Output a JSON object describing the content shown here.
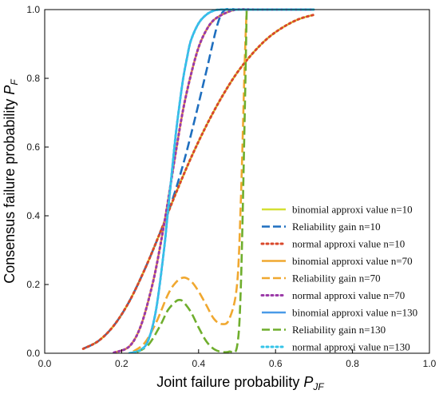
{
  "chart_data": {
    "type": "line",
    "xlabel_main": "Joint failure probability ",
    "xlabel_var": "P",
    "xlabel_sub": "JF",
    "ylabel_main": "Consensus failure probability ",
    "ylabel_var": "P",
    "ylabel_sub": "F",
    "xlim": [
      0.0,
      1.0
    ],
    "ylim": [
      0.0,
      1.0
    ],
    "xticks": [
      "0.0",
      "0.2",
      "0.4",
      "0.6",
      "0.8",
      "1.0"
    ],
    "yticks": [
      "0.0",
      "0.2",
      "0.4",
      "0.6",
      "0.8",
      "1.0"
    ],
    "grid": false,
    "legend_position": "lower-right",
    "series": [
      {
        "name": "binomial approxi value n=10",
        "color": "#d4e034",
        "style": "solid",
        "x": [
          0.1,
          0.14,
          0.18,
          0.22,
          0.26,
          0.3,
          0.34,
          0.38,
          0.42,
          0.46,
          0.5,
          0.54,
          0.58,
          0.62,
          0.66,
          0.7
        ],
        "y": [
          0.013,
          0.036,
          0.081,
          0.151,
          0.244,
          0.351,
          0.463,
          0.568,
          0.662,
          0.745,
          0.816,
          0.872,
          0.917,
          0.949,
          0.972,
          0.985
        ]
      },
      {
        "name": "Reliability gain n=10",
        "color": "#1f6fbf",
        "style": "dashed",
        "x": [
          0.1,
          0.14,
          0.18,
          0.22,
          0.26,
          0.3,
          0.33,
          0.36,
          0.39,
          0.42,
          0.45,
          0.47,
          0.5,
          0.55,
          0.6,
          0.7
        ],
        "y": [
          0.013,
          0.036,
          0.081,
          0.151,
          0.244,
          0.351,
          0.44,
          0.55,
          0.68,
          0.82,
          0.96,
          1.0,
          1.0,
          1.0,
          1.0,
          1.0
        ]
      },
      {
        "name": "normal approxi value n=10",
        "color": "#d9482b",
        "style": "dotted",
        "x": [
          0.1,
          0.14,
          0.18,
          0.22,
          0.26,
          0.3,
          0.34,
          0.38,
          0.42,
          0.46,
          0.5,
          0.54,
          0.58,
          0.62,
          0.66,
          0.7
        ],
        "y": [
          0.013,
          0.036,
          0.081,
          0.151,
          0.244,
          0.351,
          0.463,
          0.568,
          0.662,
          0.745,
          0.816,
          0.872,
          0.917,
          0.949,
          0.972,
          0.985
        ]
      },
      {
        "name": "binomial approxi value n=70",
        "color": "#f0a830",
        "style": "solid",
        "x": [
          0.18,
          0.22,
          0.25,
          0.28,
          0.3,
          0.32,
          0.34,
          0.36,
          0.38,
          0.4,
          0.42,
          0.44,
          0.47,
          0.5,
          0.55,
          0.6,
          0.7
        ],
        "y": [
          0.002,
          0.02,
          0.08,
          0.2,
          0.31,
          0.44,
          0.58,
          0.71,
          0.81,
          0.89,
          0.94,
          0.97,
          0.99,
          1.0,
          1.0,
          1.0,
          1.0
        ]
      },
      {
        "name": "Reliability gain n=70",
        "color": "#f0a830",
        "style": "dashed",
        "x": [
          0.23,
          0.26,
          0.29,
          0.32,
          0.34,
          0.36,
          0.38,
          0.4,
          0.42,
          0.44,
          0.46,
          0.48,
          0.5,
          0.51,
          0.52,
          0.525
        ],
        "y": [
          0.005,
          0.03,
          0.09,
          0.17,
          0.205,
          0.22,
          0.21,
          0.18,
          0.14,
          0.1,
          0.085,
          0.1,
          0.2,
          0.45,
          0.85,
          1.0
        ]
      },
      {
        "name": "normal approxi value n=70",
        "color": "#9b3aa8",
        "style": "dotted",
        "x": [
          0.18,
          0.22,
          0.25,
          0.28,
          0.3,
          0.32,
          0.34,
          0.36,
          0.38,
          0.4,
          0.42,
          0.44,
          0.47,
          0.5,
          0.55,
          0.6,
          0.7
        ],
        "y": [
          0.002,
          0.02,
          0.08,
          0.2,
          0.31,
          0.44,
          0.58,
          0.71,
          0.81,
          0.89,
          0.94,
          0.97,
          0.99,
          1.0,
          1.0,
          1.0,
          1.0
        ]
      },
      {
        "name": "binomial approxi value n=130",
        "color": "#4a9be8",
        "style": "solid",
        "x": [
          0.22,
          0.25,
          0.27,
          0.29,
          0.31,
          0.32,
          0.33,
          0.34,
          0.35,
          0.36,
          0.37,
          0.38,
          0.4,
          0.42,
          0.44,
          0.46,
          0.5,
          0.6,
          0.7
        ],
        "y": [
          0.0,
          0.01,
          0.04,
          0.13,
          0.3,
          0.41,
          0.52,
          0.63,
          0.72,
          0.8,
          0.86,
          0.91,
          0.96,
          0.985,
          0.997,
          1.0,
          1.0,
          1.0,
          1.0
        ]
      },
      {
        "name": "Reliability gain n=130",
        "color": "#6fae2d",
        "style": "dashed",
        "x": [
          0.24,
          0.27,
          0.3,
          0.32,
          0.34,
          0.35,
          0.36,
          0.38,
          0.4,
          0.42,
          0.44,
          0.46,
          0.48,
          0.5,
          0.51,
          0.52,
          0.525
        ],
        "y": [
          0.003,
          0.025,
          0.08,
          0.125,
          0.15,
          0.155,
          0.15,
          0.12,
          0.075,
          0.035,
          0.012,
          0.004,
          0.005,
          0.02,
          0.2,
          0.7,
          1.0
        ]
      },
      {
        "name": "normal approxi value n=130",
        "color": "#35c4e8",
        "style": "dotted",
        "x": [
          0.22,
          0.25,
          0.27,
          0.29,
          0.31,
          0.32,
          0.33,
          0.34,
          0.35,
          0.36,
          0.37,
          0.38,
          0.4,
          0.42,
          0.44,
          0.46,
          0.5,
          0.6,
          0.7
        ],
        "y": [
          0.0,
          0.01,
          0.04,
          0.13,
          0.3,
          0.41,
          0.52,
          0.63,
          0.72,
          0.8,
          0.86,
          0.91,
          0.96,
          0.985,
          0.997,
          1.0,
          1.0,
          1.0,
          1.0
        ]
      }
    ]
  }
}
